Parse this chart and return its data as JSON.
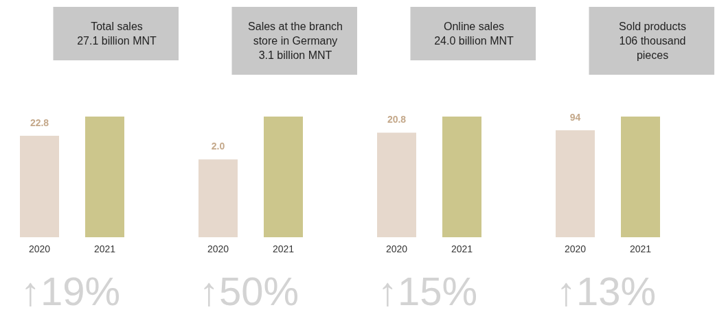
{
  "chart_data": [
    {
      "type": "bar",
      "title": "Total sales\n27.1 billion MNT",
      "categories": [
        "2020",
        "2021"
      ],
      "values": [
        22.8,
        27.1
      ],
      "colors": [
        "#e6d8cc",
        "#ccc68c"
      ],
      "value_labels": [
        "22.8",
        null
      ],
      "annotations": [
        "↑19%"
      ]
    },
    {
      "type": "bar",
      "title": "Sales at the branch\nstore in Germany\n3.1 billion MNT",
      "categories": [
        "2020",
        "2021"
      ],
      "values": [
        2.0,
        3.1
      ],
      "colors": [
        "#e6d8cc",
        "#ccc68c"
      ],
      "value_labels": [
        "2.0",
        null
      ],
      "annotations": [
        "↑50%"
      ]
    },
    {
      "type": "bar",
      "title": "Online sales\n24.0 billion MNT",
      "categories": [
        "2020",
        "2021"
      ],
      "values": [
        20.8,
        24.0
      ],
      "colors": [
        "#e6d8cc",
        "#ccc68c"
      ],
      "value_labels": [
        "20.8",
        null
      ],
      "annotations": [
        "↑15%"
      ]
    },
    {
      "type": "bar",
      "title": "Sold products\n106 thousand\npieces",
      "categories": [
        "2020",
        "2021"
      ],
      "values": [
        94,
        106
      ],
      "colors": [
        "#e6d8cc",
        "#ccc68c"
      ],
      "value_labels": [
        "94",
        null
      ],
      "annotations": [
        "↑13%"
      ]
    }
  ]
}
